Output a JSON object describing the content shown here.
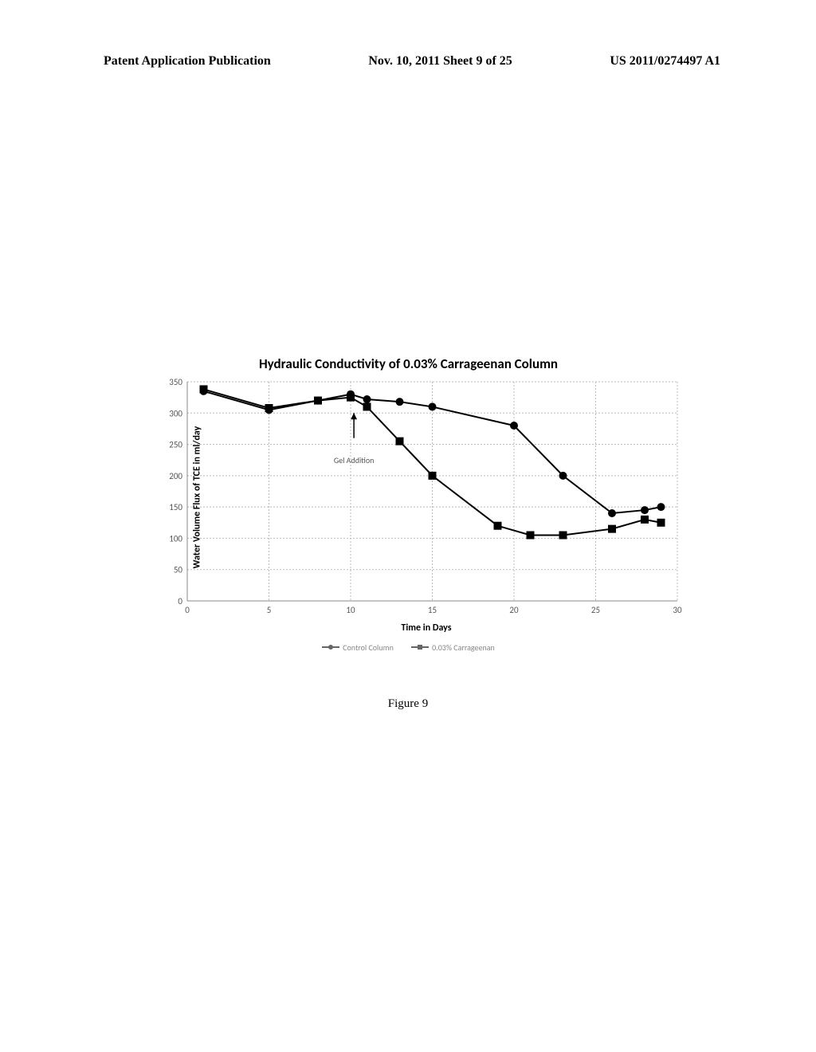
{
  "header": {
    "left": "Patent Application Publication",
    "middle": "Nov. 10, 2011  Sheet 9 of 25",
    "right": "US 2011/0274497 A1"
  },
  "figure_label": "Figure 9",
  "chart": {
    "type": "line",
    "title": "Hydraulic Conductivity of 0.03% Carrageenan Column",
    "x_label": "Time in Days",
    "y_label": "Water Volume Flux of TCE in ml/day",
    "background_color": "#ffffff",
    "grid_color": "#bbbbbb",
    "line_color": "#000000",
    "axis_color": "#888888",
    "xlim": [
      0,
      30
    ],
    "ylim": [
      0,
      350
    ],
    "x_ticks": [
      0,
      5,
      10,
      15,
      20,
      25,
      30
    ],
    "y_ticks": [
      0,
      50,
      100,
      150,
      200,
      250,
      300,
      350
    ],
    "title_fontsize": 17,
    "label_fontsize": 12,
    "tick_fontsize": 11,
    "line_width": 2,
    "marker_size": 5,
    "annotation": {
      "text": "Gel Addition",
      "x": 10.2,
      "y_text": 220,
      "arrow_from_y": 260,
      "arrow_to_y": 300
    },
    "series": [
      {
        "name": "Control Column",
        "marker": "circle",
        "color": "#000000",
        "x": [
          1,
          5,
          8,
          10,
          11,
          13,
          15,
          20,
          23,
          26,
          28,
          29
        ],
        "y": [
          335,
          305,
          320,
          330,
          322,
          318,
          310,
          280,
          200,
          140,
          145,
          150
        ]
      },
      {
        "name": "0.03% Carrageenan",
        "marker": "square",
        "color": "#000000",
        "x": [
          1,
          5,
          8,
          10,
          11,
          13,
          15,
          19,
          21,
          23,
          26,
          28,
          29
        ],
        "y": [
          338,
          308,
          320,
          325,
          310,
          255,
          200,
          120,
          105,
          105,
          115,
          130,
          125
        ]
      }
    ],
    "legend_items": [
      "Control Column",
      "0.03% Carrageenan"
    ]
  }
}
